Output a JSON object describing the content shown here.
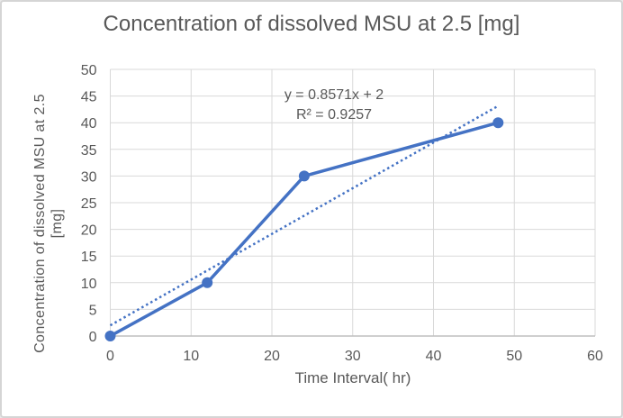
{
  "chart_data": {
    "type": "line",
    "title": "Concentration of dissolved MSU at 2.5 [mg]",
    "xlabel": "Time Interval( hr)",
    "ylabel_line1": "Concentration of dissolved MSU at 2.5",
    "ylabel_line2": "[mg]",
    "series": [
      {
        "x": [
          0,
          12,
          24,
          48
        ],
        "y": [
          0,
          10,
          30,
          40
        ],
        "color": "#4472C4",
        "marker": "circle",
        "line_style": "solid"
      }
    ],
    "trendline": {
      "equation": "y = 0.8571x + 2",
      "r_squared": "R² = 0.9257",
      "slope": 0.8571,
      "intercept": 2,
      "x_start": 0,
      "x_end": 48,
      "style": "dotted",
      "color": "#4472C4"
    },
    "xlim": [
      0,
      60
    ],
    "ylim": [
      0,
      50
    ],
    "x_ticks": [
      0,
      10,
      20,
      30,
      40,
      50,
      60
    ],
    "y_ticks": [
      0,
      5,
      10,
      15,
      20,
      25,
      30,
      35,
      40,
      45,
      50
    ],
    "grid": true,
    "legend": false,
    "gridline_color": "#D9D9D9",
    "axis_line_color": "#BFBFBF",
    "text_color": "#595959"
  }
}
